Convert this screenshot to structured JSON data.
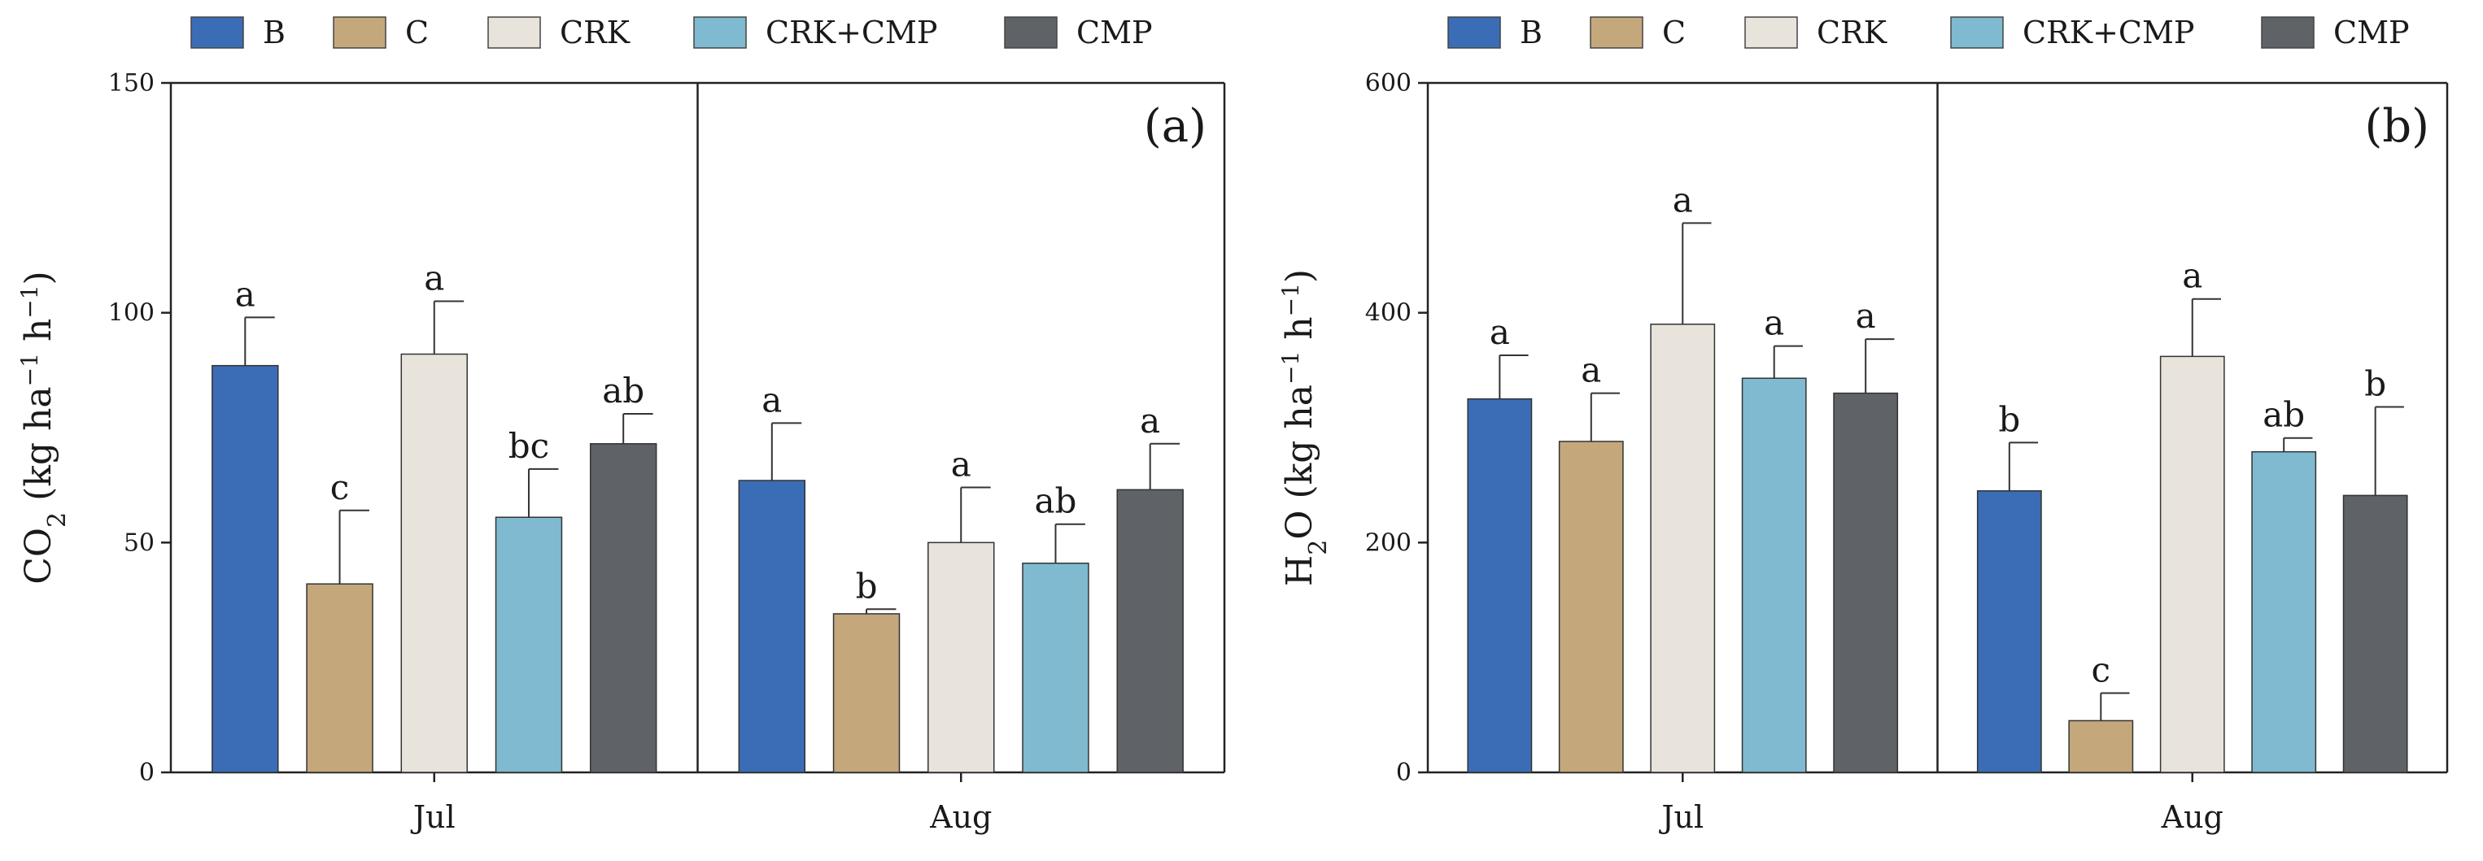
{
  "chart_data": [
    {
      "type": "bar",
      "panel_label": "(a)",
      "ylabel": {
        "main": "CO",
        "sub": "2",
        "units": "(kg ha",
        "exp1": "−1",
        "mid": " h",
        "exp2": "−1",
        "close": ")"
      },
      "ylim": [
        0,
        150
      ],
      "yticks": [
        "0",
        "50",
        "100",
        "150"
      ],
      "ytick_values": [
        0,
        50,
        100,
        150
      ],
      "categories": [
        "Jul",
        "Aug"
      ],
      "series": [
        {
          "name": "B",
          "values": [
            88.5,
            63.5
          ],
          "errors": [
            10.5,
            12.5
          ],
          "letters": [
            "a",
            "a"
          ]
        },
        {
          "name": "C",
          "values": [
            41,
            34.5
          ],
          "errors": [
            16,
            1
          ],
          "letters": [
            "c",
            "b"
          ]
        },
        {
          "name": "CRK",
          "values": [
            91,
            50
          ],
          "errors": [
            11.5,
            12
          ],
          "letters": [
            "a",
            "a"
          ]
        },
        {
          "name": "CRK+CMP",
          "values": [
            55.5,
            45.5
          ],
          "errors": [
            10.5,
            8.5
          ],
          "letters": [
            "bc",
            "ab"
          ]
        },
        {
          "name": "CMP",
          "values": [
            71.5,
            61.5
          ],
          "errors": [
            6.5,
            10
          ],
          "letters": [
            "ab",
            "a"
          ]
        }
      ]
    },
    {
      "type": "bar",
      "panel_label": "(b)",
      "ylabel": {
        "main": "H",
        "sub": "2",
        "main2": "O ",
        "units": "(kg ha",
        "exp1": "−1",
        "mid": " h",
        "exp2": "−1",
        "close": ")"
      },
      "ylim": [
        0,
        600
      ],
      "yticks": [
        "0",
        "200",
        "400",
        "600"
      ],
      "ytick_values": [
        0,
        200,
        400,
        600
      ],
      "categories": [
        "Jul",
        "Aug"
      ],
      "series": [
        {
          "name": "B",
          "values": [
            325,
            245
          ],
          "errors": [
            38,
            42
          ],
          "letters": [
            "a",
            "b"
          ]
        },
        {
          "name": "C",
          "values": [
            288,
            45
          ],
          "errors": [
            42,
            24
          ],
          "letters": [
            "a",
            "c"
          ]
        },
        {
          "name": "CRK",
          "values": [
            390,
            362
          ],
          "errors": [
            88,
            50
          ],
          "letters": [
            "a",
            "a"
          ]
        },
        {
          "name": "CRK+CMP",
          "values": [
            343,
            279
          ],
          "errors": [
            28,
            12
          ],
          "letters": [
            "a",
            "ab"
          ]
        },
        {
          "name": "CMP",
          "values": [
            330,
            241
          ],
          "errors": [
            47,
            77
          ],
          "letters": [
            "a",
            "b"
          ]
        }
      ]
    }
  ],
  "legend": [
    "B",
    "C",
    "CRK",
    "CRK+CMP",
    "CMP"
  ],
  "colors": {
    "B": "#3a6db5",
    "C": "#c4a87c",
    "CRK": "#e8e4dc",
    "CRK+CMP": "#7fbad0",
    "CMP": "#5f6266"
  }
}
